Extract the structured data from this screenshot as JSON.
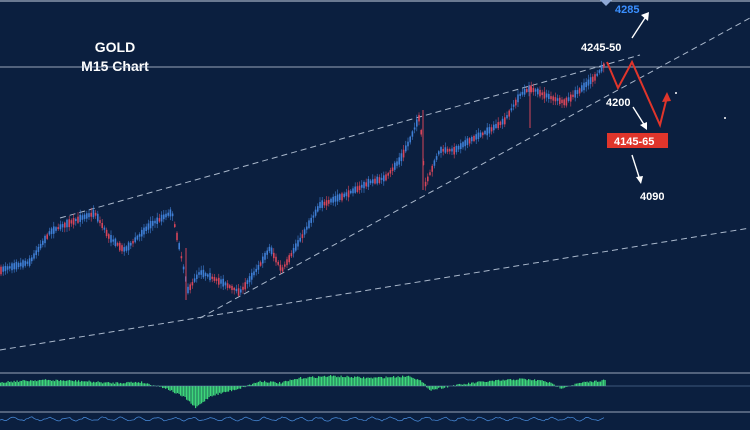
{
  "title": {
    "line1": "GOLD",
    "line2": "M15 Chart"
  },
  "colors": {
    "background": "#0b1f3f",
    "bull_candle": "#3f7fd6",
    "bear_candle": "#d6455a",
    "projection": "#e0352b",
    "oscillator": "#3dd67a",
    "trendline": "#aab8cc",
    "target_box": "#e0352b",
    "target_text_top": "#3a8fff"
  },
  "chart_data": {
    "type": "candlestick",
    "instrument": "GOLD",
    "timeframe": "M15",
    "price_levels": [
      {
        "label": "4285",
        "value": 4285
      },
      {
        "label": "4245-50",
        "value": 4247
      },
      {
        "label": "4200",
        "value": 4200
      },
      {
        "label": "4145-65",
        "value": 4155
      },
      {
        "label": "4090",
        "value": 4090
      }
    ],
    "projection_path": [
      4245,
      4205,
      4247,
      4150,
      4180
    ],
    "grid": false,
    "indicator_panel": "oscillator"
  }
}
